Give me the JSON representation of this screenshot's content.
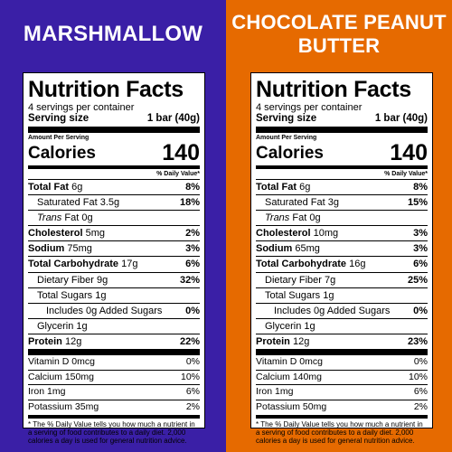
{
  "panels": [
    {
      "flavor": "MARSHMALLOW",
      "bg": "#3a1fa6",
      "title": "Nutrition Facts",
      "servings": "4 servings per container",
      "serving_size_label": "Serving size",
      "serving_size_value": "1 bar (40g)",
      "amount_per_serving": "Amount Per Serving",
      "calories_label": "Calories",
      "calories_value": "140",
      "dv_header": "% Daily Value*",
      "total_fat": {
        "name": "Total Fat",
        "amt": "6g",
        "dv": "8%"
      },
      "sat_fat": {
        "name": "Saturated Fat",
        "amt": "3.5g",
        "dv": "18%"
      },
      "trans_fat": {
        "name": "Trans",
        "suffix": "Fat 0g"
      },
      "cholesterol": {
        "name": "Cholesterol",
        "amt": "5mg",
        "dv": "2%"
      },
      "sodium": {
        "name": "Sodium",
        "amt": "75mg",
        "dv": "3%"
      },
      "carbs": {
        "name": "Total Carbohydrate",
        "amt": "17g",
        "dv": "6%"
      },
      "fiber": {
        "name": "Dietary Fiber",
        "amt": "9g",
        "dv": "32%"
      },
      "sugars": {
        "text": "Total Sugars 1g"
      },
      "added_sugars": {
        "text": "Includes 0g Added Sugars",
        "dv": "0%"
      },
      "glycerin": {
        "text": "Glycerin  1g"
      },
      "protein": {
        "name": "Protein",
        "amt": "12g",
        "dv": "22%"
      },
      "vitamin_d": {
        "text": "Vitamin D 0mcg",
        "dv": "0%"
      },
      "calcium": {
        "text": "Calcium 150mg",
        "dv": "10%"
      },
      "iron": {
        "text": "Iron 1mg",
        "dv": "6%"
      },
      "potassium": {
        "text": "Potassium 35mg",
        "dv": "2%"
      },
      "footnote": "* The % Daily Value tells you how much a nutrient in a serving of food contributes to a daily diet. 2,000 calories a day is used for general nutrition advice."
    },
    {
      "flavor": "CHOCOLATE PEANUT BUTTER",
      "bg": "#e66a00",
      "title": "Nutrition Facts",
      "servings": "4 servings per container",
      "serving_size_label": "Serving size",
      "serving_size_value": "1 bar (40g)",
      "amount_per_serving": "Amount Per Serving",
      "calories_label": "Calories",
      "calories_value": "140",
      "dv_header": "% Daily Value*",
      "total_fat": {
        "name": "Total Fat",
        "amt": "6g",
        "dv": "8%"
      },
      "sat_fat": {
        "name": "Saturated Fat",
        "amt": "3g",
        "dv": "15%"
      },
      "trans_fat": {
        "name": "Trans",
        "suffix": "Fat 0g"
      },
      "cholesterol": {
        "name": "Cholesterol",
        "amt": "10mg",
        "dv": "3%"
      },
      "sodium": {
        "name": "Sodium",
        "amt": "65mg",
        "dv": "3%"
      },
      "carbs": {
        "name": "Total Carbohydrate",
        "amt": "16g",
        "dv": "6%"
      },
      "fiber": {
        "name": "Dietary Fiber",
        "amt": "7g",
        "dv": "25%"
      },
      "sugars": {
        "text": "Total Sugars 1g"
      },
      "added_sugars": {
        "text": "Includes 0g Added Sugars",
        "dv": "0%"
      },
      "glycerin": {
        "text": "Glycerin  1g"
      },
      "protein": {
        "name": "Protein",
        "amt": "12g",
        "dv": "23%"
      },
      "vitamin_d": {
        "text": "Vitamin D 0mcg",
        "dv": "0%"
      },
      "calcium": {
        "text": "Calcium 140mg",
        "dv": "10%"
      },
      "iron": {
        "text": "Iron 1mg",
        "dv": "6%"
      },
      "potassium": {
        "text": "Potassium 50mg",
        "dv": "2%"
      },
      "footnote": "* The % Daily Value tells you how much a nutrient in a serving of food contributes to a daily diet. 2,000 calories a day is used for general nutrition advice."
    }
  ]
}
